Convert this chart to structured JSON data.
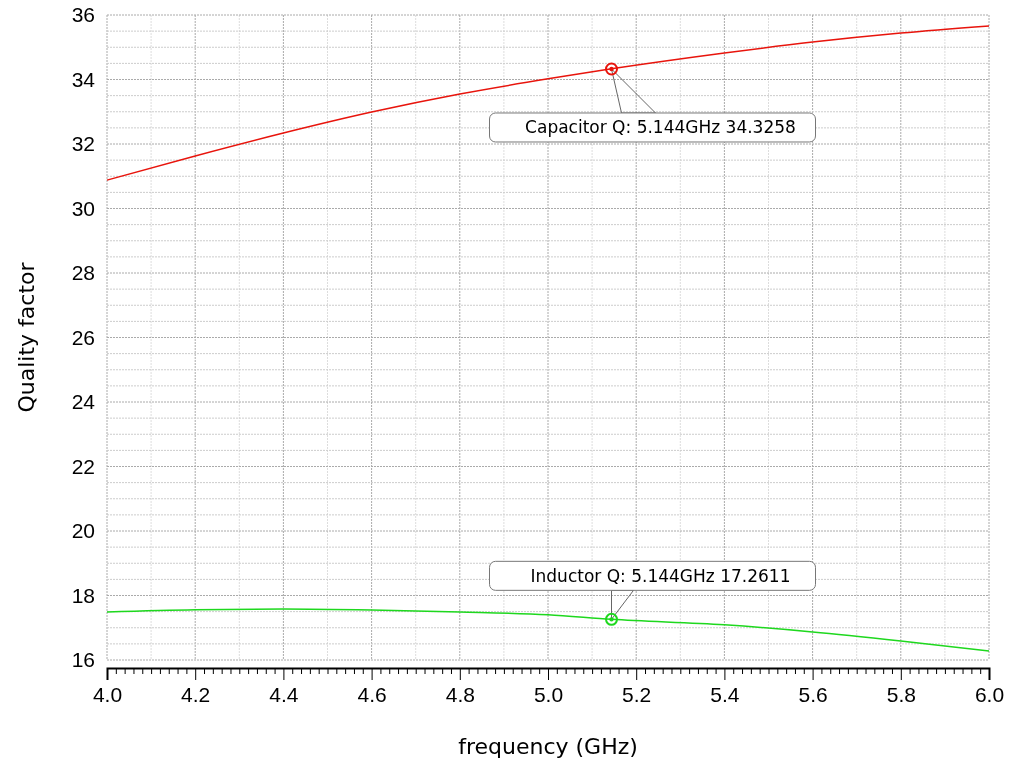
{
  "chart_data": {
    "type": "line",
    "xlabel": "frequency (GHz)",
    "ylabel": "Quality factor",
    "x": [
      4.0,
      4.2,
      4.4,
      4.6,
      4.8,
      5.0,
      5.144,
      5.4,
      5.6,
      5.8,
      6.0
    ],
    "series": [
      {
        "color": "#e8140c",
        "values": [
          30.88,
          31.63,
          32.34,
          32.99,
          33.55,
          34.02,
          34.33,
          34.82,
          35.16,
          35.44,
          35.66
        ]
      },
      {
        "color": "#1ed81e",
        "values": [
          17.49,
          17.56,
          17.58,
          17.55,
          17.49,
          17.4,
          17.26,
          17.09,
          16.87,
          16.59,
          16.28
        ]
      }
    ],
    "xlim": [
      4.0,
      6.0
    ],
    "xticks": [
      {
        "value": 4.0,
        "label": "4.0"
      },
      4.2,
      4.4,
      4.6,
      4.8,
      {
        "value": 5.0,
        "label": "5.0"
      },
      5.2,
      5.4,
      5.6,
      5.8,
      {
        "value": 6.0,
        "label": "6.0"
      }
    ],
    "ylim": [
      16,
      36
    ],
    "yticks": [
      16,
      18,
      20,
      22,
      24,
      26,
      28,
      30,
      32,
      34,
      36
    ],
    "grid": true,
    "marker": "none",
    "line_style": "solid",
    "annotations": [
      {
        "text": "Capacitor Q: 5.144GHz 34.3258",
        "x": 5.144,
        "y": 34.3258
      },
      {
        "text": "Inductor Q: 5.144GHz 17.2611",
        "x": 5.144,
        "y": 17.2611
      }
    ]
  }
}
